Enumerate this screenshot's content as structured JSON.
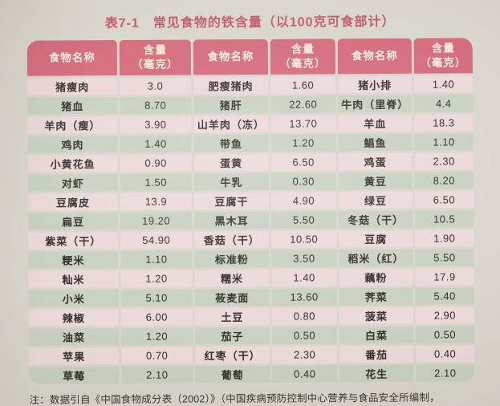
{
  "title": "表7-1　常见食物的铁含量（以100克可食部计）",
  "note": "注：数据引自《中国食物成分表（2002）》（中国疾病预防控制中心营养与食品安全所编制，",
  "colors": {
    "paper": "#d9d6cd",
    "header_bg": "#d56c7d",
    "header_text": "#f8ecdc",
    "row_pink": "#ecd9da",
    "row_green": "#c8d1c2",
    "title_text": "#c25c70",
    "cell_text": "#35302a"
  },
  "table": {
    "header": {
      "food": "食物名称",
      "amount_line1": "含量",
      "amount_line2": "（毫克）"
    },
    "rows": [
      {
        "c1": "猪瘦肉",
        "v1": "3.0",
        "c2": "肥瘦猪肉",
        "v2": "1.60",
        "c3": "猪小排",
        "v3": "1.40"
      },
      {
        "c1": "猪血",
        "v1": "8.70",
        "c2": "猪肝",
        "v2": "22.60",
        "c3": "牛肉（里脊）",
        "v3": "4.4"
      },
      {
        "c1": "羊肉（瘦）",
        "v1": "3.90",
        "c2": "山羊肉（冻）",
        "v2": "13.70",
        "c3": "羊血",
        "v3": "18.3"
      },
      {
        "c1": "鸡肉",
        "v1": "1.40",
        "c2": "带鱼",
        "v2": "1.20",
        "c3": "鲳鱼",
        "v3": "1.10"
      },
      {
        "c1": "小黄花鱼",
        "v1": "0.90",
        "c2": "蛋黄",
        "v2": "6.50",
        "c3": "鸡蛋",
        "v3": "2.30"
      },
      {
        "c1": "对虾",
        "v1": "1.50",
        "c2": "牛乳",
        "v2": "0.30",
        "c3": "黄豆",
        "v3": "8.20"
      },
      {
        "c1": "豆腐皮",
        "v1": "13.9",
        "c2": "豆腐干",
        "v2": "4.90",
        "c3": "绿豆",
        "v3": "6.50"
      },
      {
        "c1": "扁豆",
        "v1": "19.20",
        "c2": "黑木耳",
        "v2": "5.50",
        "c3": "冬菇（干）",
        "v3": "10.5"
      },
      {
        "c1": "紫菜（干）",
        "v1": "54.90",
        "c2": "香菇（干）",
        "v2": "10.50",
        "c3": "豆腐",
        "v3": "1.90"
      },
      {
        "c1": "粳米",
        "v1": "1.10",
        "c2": "标准粉",
        "v2": "3.50",
        "c3": "稻米（红）",
        "v3": "5.50"
      },
      {
        "c1": "籼米",
        "v1": "1.20",
        "c2": "糯米",
        "v2": "1.40",
        "c3": "藕粉",
        "v3": "17.9"
      },
      {
        "c1": "小米",
        "v1": "5.10",
        "c2": "莜麦面",
        "v2": "13.60",
        "c3": "荠菜",
        "v3": "5.40"
      },
      {
        "c1": "辣椒",
        "v1": "6.00",
        "c2": "土豆",
        "v2": "0.80",
        "c3": "菠菜",
        "v3": "2.90"
      },
      {
        "c1": "油菜",
        "v1": "1.20",
        "c2": "茄子",
        "v2": "0.50",
        "c3": "白菜",
        "v3": "0.50"
      },
      {
        "c1": "苹果",
        "v1": "0.70",
        "c2": "红枣（干）",
        "v2": "2.30",
        "c3": "番茄",
        "v3": "0.40"
      },
      {
        "c1": "草莓",
        "v1": "2.10",
        "c2": "葡萄",
        "v2": "0.40",
        "c3": "花生",
        "v3": "2.10"
      }
    ]
  }
}
